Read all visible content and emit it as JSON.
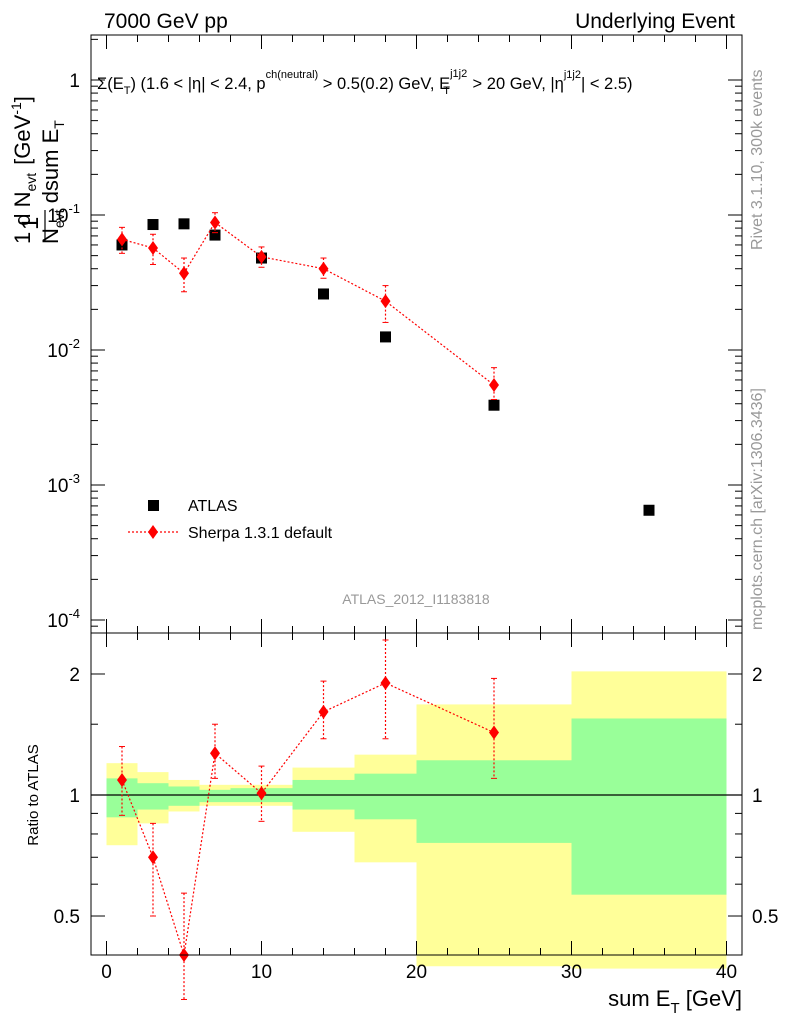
{
  "header": {
    "left": "7000 GeV pp",
    "right": "Underlying Event"
  },
  "side": {
    "rivet": "Rivet 3.1.10,  300k events",
    "mcplots": "mcplots.cern.ch [arXiv:1306.3436]"
  },
  "colors": {
    "data": "#000000",
    "mc": "#ff0000",
    "band_inner": "#99ff99",
    "band_outer": "#ffff99"
  },
  "chart_data": [
    {
      "type": "scatter",
      "panel": "main",
      "title": "Σ(E_T) (1.6 < |η| < 2.4, p^ch(neutral) > 0.5(0.2) GeV, E_T^j1j2 > 20 GeV, |η^j1j2| < 2.5)",
      "ylabel": "1/N_evt dN_evt/dsum E_T [GeV^-1]",
      "ylim": [
        0.0001,
        2
      ],
      "yscale": "log",
      "xlim": [
        -1,
        41
      ],
      "ytick_labels": [
        "1",
        "10^-1",
        "10^-2",
        "10^-3",
        "10^-4"
      ],
      "watermark": "ATLAS_2012_I1183818",
      "legend": {
        "placement": "lower-left",
        "entries": [
          "ATLAS",
          "Sherpa 1.3.1 default"
        ]
      },
      "series": [
        {
          "name": "ATLAS",
          "marker": "square",
          "x": [
            1,
            3,
            5,
            7,
            10,
            14,
            18,
            25,
            35
          ],
          "y": [
            0.06,
            0.085,
            0.086,
            0.071,
            0.048,
            0.026,
            0.0125,
            0.0039,
            0.00065
          ]
        },
        {
          "name": "Sherpa 1.3.1 default",
          "marker": "diamond",
          "x": [
            1,
            3,
            5,
            7,
            10,
            14,
            18,
            25
          ],
          "y": [
            0.066,
            0.057,
            0.037,
            0.088,
            0.049,
            0.04,
            0.023,
            0.0055
          ],
          "y_lo": [
            0.052,
            0.043,
            0.027,
            0.074,
            0.041,
            0.034,
            0.016,
            0.0043
          ],
          "y_hi": [
            0.081,
            0.072,
            0.048,
            0.104,
            0.058,
            0.048,
            0.03,
            0.0074
          ]
        }
      ]
    },
    {
      "type": "scatter",
      "panel": "ratio",
      "xlabel": "sum E_T [GeV]",
      "ylabel": "Ratio to ATLAS",
      "xlim": [
        -1,
        41
      ],
      "ylim": [
        0.42,
        2.28
      ],
      "yscale": "log",
      "xticks": [
        0,
        10,
        20,
        30,
        40
      ],
      "yticks": [
        0.5,
        1,
        2
      ],
      "bands": [
        {
          "x0": 0,
          "x1": 2,
          "inner": [
            0.88,
            1.1
          ],
          "outer": [
            0.75,
            1.2
          ]
        },
        {
          "x0": 2,
          "x1": 4,
          "inner": [
            0.92,
            1.07
          ],
          "outer": [
            0.85,
            1.14
          ]
        },
        {
          "x0": 4,
          "x1": 6,
          "inner": [
            0.94,
            1.05
          ],
          "outer": [
            0.91,
            1.09
          ]
        },
        {
          "x0": 6,
          "x1": 8,
          "inner": [
            0.96,
            1.03
          ],
          "outer": [
            0.94,
            1.06
          ]
        },
        {
          "x0": 8,
          "x1": 12,
          "inner": [
            0.96,
            1.04
          ],
          "outer": [
            0.94,
            1.06
          ]
        },
        {
          "x0": 12,
          "x1": 16,
          "inner": [
            0.92,
            1.09
          ],
          "outer": [
            0.81,
            1.17
          ]
        },
        {
          "x0": 16,
          "x1": 20,
          "inner": [
            0.87,
            1.13
          ],
          "outer": [
            0.68,
            1.26
          ]
        },
        {
          "x0": 20,
          "x1": 30,
          "inner": [
            0.76,
            1.22
          ],
          "outer": [
            0.375,
            1.68
          ]
        },
        {
          "x0": 30,
          "x1": 40,
          "inner": [
            0.565,
            1.55
          ],
          "outer": [
            0.37,
            2.03
          ]
        }
      ],
      "series": [
        {
          "name": "Sherpa 1.3.1 default",
          "x": [
            1,
            3,
            5,
            7,
            10,
            14,
            18,
            25
          ],
          "y": [
            1.09,
            0.7,
            0.4,
            1.27,
            1.01,
            1.61,
            1.9,
            1.43
          ],
          "y_lo": [
            0.89,
            0.5,
            0.31,
            1.1,
            0.86,
            1.38,
            1.38,
            1.1
          ],
          "y_hi": [
            1.32,
            0.85,
            0.57,
            1.5,
            1.18,
            1.92,
            2.43,
            1.95
          ]
        }
      ]
    }
  ]
}
